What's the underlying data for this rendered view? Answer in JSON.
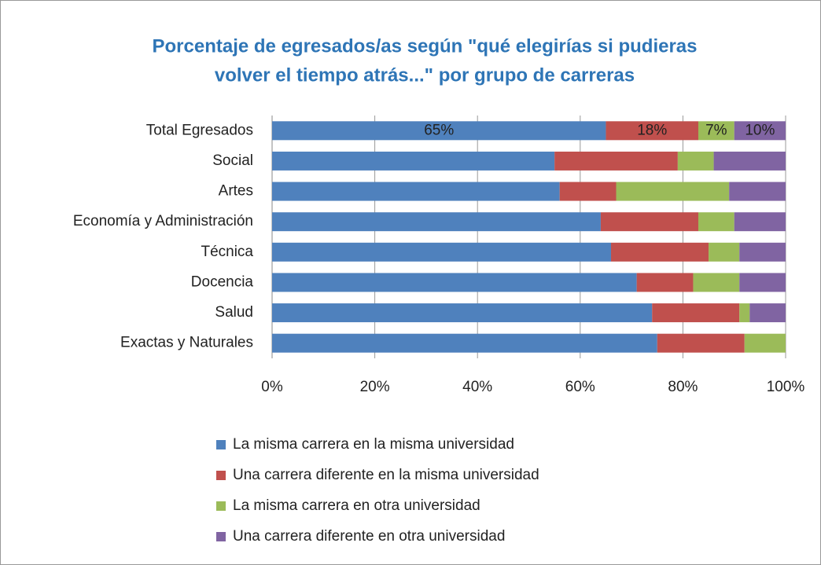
{
  "chart_data": {
    "type": "stacked-barh",
    "title": [
      "Porcentaje de egresados/as según \"qué elegirías si pudieras",
      "volver el tiempo atrás...\" por grupo de carreras"
    ],
    "categories": [
      "Total Egresados",
      "Social",
      "Artes",
      "Economía y Administración",
      "Técnica",
      "Docencia",
      "Salud",
      "Exactas y Naturales"
    ],
    "series": [
      {
        "name": "La misma carrera en la misma universidad",
        "color": "#4f81bd",
        "values": [
          65,
          55,
          56,
          64,
          66,
          71,
          74,
          75
        ],
        "value_labels": [
          "65%",
          null,
          null,
          null,
          null,
          null,
          null,
          null
        ]
      },
      {
        "name": "Una carrera diferente en la misma universidad",
        "color": "#c0504d",
        "values": [
          18,
          24,
          11,
          19,
          19,
          11,
          17,
          17
        ],
        "value_labels": [
          "18%",
          null,
          null,
          null,
          null,
          null,
          null,
          null
        ]
      },
      {
        "name": "La misma carrera en otra universidad",
        "color": "#9bbb59",
        "values": [
          7,
          7,
          22,
          7,
          6,
          9,
          2,
          8
        ],
        "value_labels": [
          "7%",
          null,
          null,
          null,
          null,
          null,
          null,
          null
        ]
      },
      {
        "name": "Una carrera diferente en otra universidad",
        "color": "#8064a2",
        "values": [
          10,
          14,
          11,
          10,
          9,
          9,
          7,
          0
        ],
        "value_labels": [
          "10%",
          null,
          null,
          null,
          null,
          null,
          null,
          null
        ]
      }
    ],
    "xlim": [
      0,
      100
    ],
    "xticks": [
      {
        "value": 0,
        "label": "0%"
      },
      {
        "value": 20,
        "label": "20%"
      },
      {
        "value": 40,
        "label": "40%"
      },
      {
        "value": 60,
        "label": "60%"
      },
      {
        "value": 80,
        "label": "80%"
      },
      {
        "value": 100,
        "label": "100%"
      }
    ],
    "grid": true,
    "legend": "bottom"
  }
}
